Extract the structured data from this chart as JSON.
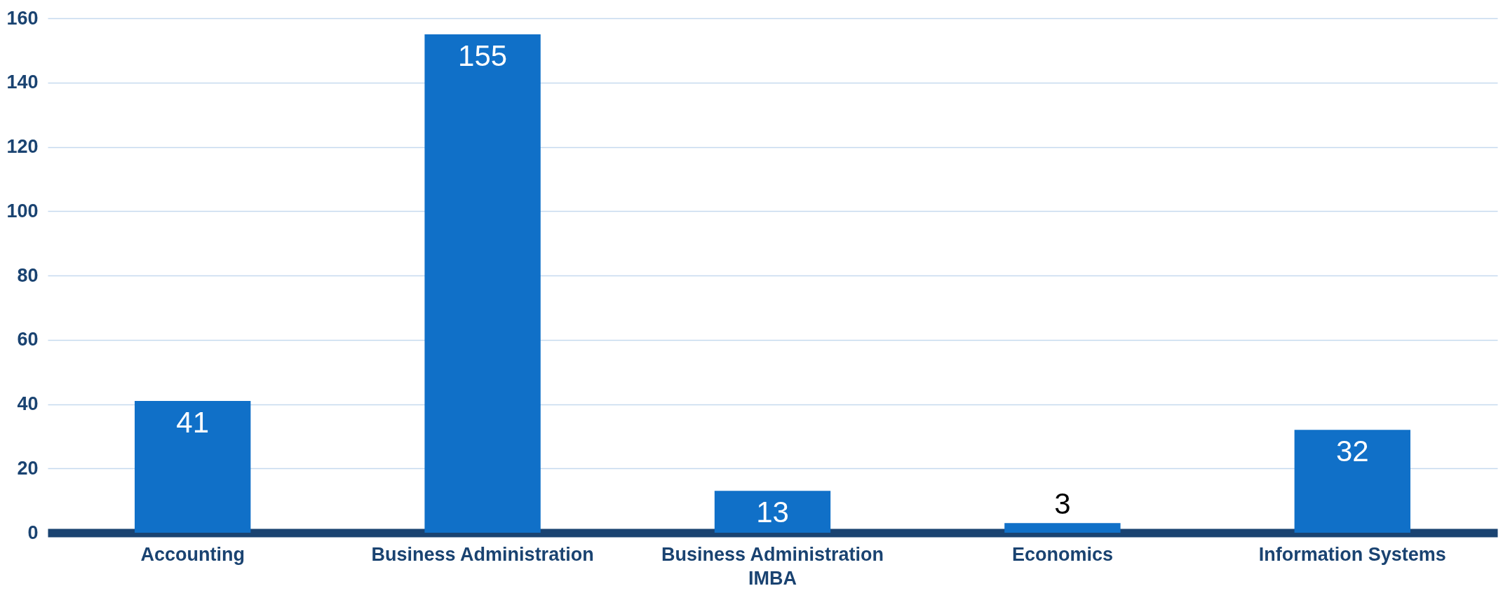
{
  "chart_data": {
    "type": "bar",
    "categories": [
      "Accounting",
      "Business Administration",
      "Business Administration IMBA",
      "Economics",
      "Information Systems"
    ],
    "values": [
      41,
      155,
      13,
      3,
      32
    ],
    "color": "#1070c8",
    "ylim": [
      0,
      160
    ],
    "yticks": [
      0,
      20,
      40,
      60,
      80,
      100,
      120,
      140,
      160
    ],
    "grid": "y",
    "data_labels": true
  }
}
